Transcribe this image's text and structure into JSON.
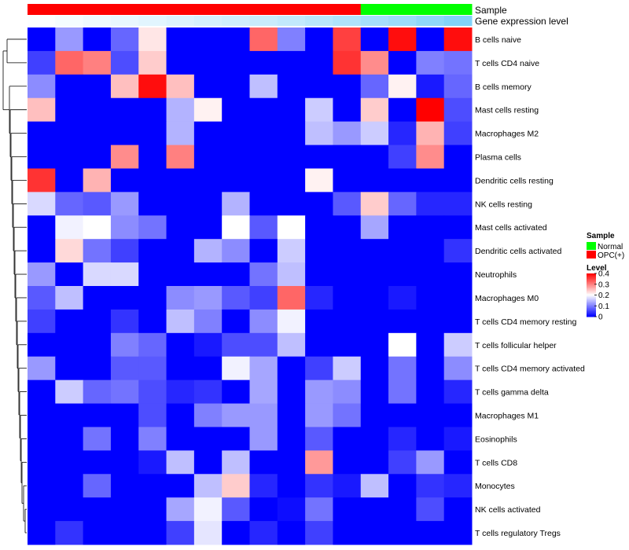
{
  "chart_data": {
    "type": "heatmap",
    "title": "",
    "annotation_tracks": [
      {
        "name": "Sample",
        "values": [
          "OPC(+)",
          "OPC(+)",
          "OPC(+)",
          "OPC(+)",
          "OPC(+)",
          "OPC(+)",
          "OPC(+)",
          "OPC(+)",
          "OPC(+)",
          "OPC(+)",
          "OPC(+)",
          "OPC(+)",
          "Normal",
          "Normal",
          "Normal",
          "Normal"
        ]
      },
      {
        "name": "Gene expression level",
        "values": [
          0.02,
          0.06,
          0.1,
          0.14,
          0.18,
          0.22,
          0.26,
          0.3,
          0.34,
          0.38,
          0.44,
          0.5,
          0.56,
          0.62,
          0.7,
          0.78
        ]
      }
    ],
    "rows": [
      "B cells naive",
      "T cells CD4 naive",
      "B cells memory",
      "Mast cells resting",
      "Macrophages M2",
      "Plasma cells",
      "Dendritic cells resting",
      "NK cells resting",
      "Mast cells activated",
      "Dendritic cells activated",
      "Neutrophils",
      "Macrophages M0",
      "T cells CD4 memory resting",
      "T cells follicular helper",
      "T cells CD4 memory activated",
      "T cells gamma delta",
      "Macrophages M1",
      "Eosinophils",
      "T cells CD8",
      "Monocytes",
      "NK cells activated",
      "T cells regulatory  Tregs"
    ],
    "values": [
      [
        0,
        0.12,
        0,
        0.08,
        0.22,
        0,
        0,
        0,
        0.32,
        0.1,
        0,
        0.35,
        0,
        0.39,
        0,
        0.39
      ],
      [
        0.05,
        0.32,
        0.3,
        0.06,
        0.24,
        0,
        0,
        0,
        0,
        0,
        0,
        0.36,
        0.29,
        0,
        0.1,
        0.09
      ],
      [
        0.11,
        0,
        0,
        0.25,
        0.39,
        0.25,
        0,
        0,
        0.15,
        0,
        0,
        0,
        0.08,
        0.21,
        0.02,
        0.08
      ],
      [
        0.25,
        0,
        0,
        0,
        0,
        0.14,
        0.21,
        0,
        0,
        0,
        0.16,
        0,
        0.24,
        0,
        0.4,
        0.06
      ],
      [
        0,
        0,
        0,
        0,
        0,
        0.14,
        0,
        0,
        0,
        0,
        0.15,
        0.12,
        0.16,
        0.03,
        0.26,
        0.05
      ],
      [
        0,
        0,
        0,
        0.29,
        0,
        0.3,
        0,
        0,
        0,
        0,
        0,
        0,
        0,
        0.05,
        0.29,
        0
      ],
      [
        0.36,
        0,
        0.26,
        0,
        0,
        0,
        0,
        0,
        0,
        0,
        0.21,
        0,
        0,
        0,
        0,
        0
      ],
      [
        0.17,
        0.08,
        0.07,
        0.12,
        0,
        0,
        0,
        0.14,
        0,
        0,
        0,
        0.07,
        0.24,
        0.08,
        0.03,
        0.03
      ],
      [
        0,
        0.19,
        0.2,
        0.11,
        0.09,
        0,
        0,
        0.2,
        0.07,
        0.2,
        0,
        0,
        0.13,
        0,
        0,
        0
      ],
      [
        0,
        0.23,
        0.09,
        0.05,
        0,
        0,
        0.14,
        0.11,
        0,
        0.16,
        0,
        0,
        0,
        0,
        0,
        0.04
      ],
      [
        0.12,
        0,
        0.17,
        0.17,
        0,
        0,
        0,
        0,
        0.09,
        0.15,
        0,
        0,
        0,
        0,
        0,
        0
      ],
      [
        0.07,
        0.15,
        0,
        0,
        0,
        0.11,
        0.12,
        0.07,
        0.05,
        0.32,
        0.03,
        0,
        0,
        0.02,
        0,
        0
      ],
      [
        0.05,
        0,
        0,
        0.04,
        0,
        0.15,
        0.1,
        0,
        0.11,
        0.19,
        0,
        0,
        0,
        0,
        0,
        0
      ],
      [
        0,
        0,
        0,
        0.1,
        0.08,
        0,
        0.02,
        0.06,
        0.06,
        0.15,
        0,
        0,
        0,
        0.2,
        0,
        0.16
      ],
      [
        0.12,
        0,
        0,
        0.07,
        0.07,
        0,
        0,
        0.19,
        0.13,
        0,
        0.05,
        0.16,
        0,
        0.09,
        0,
        0.11
      ],
      [
        0,
        0.16,
        0.08,
        0.09,
        0.06,
        0.03,
        0.04,
        0,
        0.13,
        0,
        0.12,
        0.11,
        0,
        0.09,
        0,
        0.03
      ],
      [
        0,
        0,
        0,
        0,
        0.06,
        0,
        0.1,
        0.12,
        0.12,
        0,
        0.12,
        0.09,
        0,
        0,
        0,
        0
      ],
      [
        0,
        0,
        0.09,
        0,
        0.1,
        0,
        0,
        0,
        0.12,
        0,
        0.07,
        0,
        0,
        0.03,
        0,
        0.02
      ],
      [
        0,
        0,
        0,
        0,
        0.02,
        0.15,
        0,
        0.15,
        0,
        0,
        0.28,
        0,
        0,
        0.05,
        0.12,
        0
      ],
      [
        0,
        0,
        0.08,
        0,
        0,
        0,
        0.15,
        0.24,
        0.03,
        0,
        0.04,
        0.02,
        0.15,
        0,
        0.04,
        0.03
      ],
      [
        0,
        0,
        0,
        0,
        0,
        0.13,
        0.19,
        0.07,
        0,
        0.01,
        0.09,
        0,
        0,
        0,
        0.06,
        0
      ],
      [
        0,
        0.04,
        0,
        0,
        0,
        0.05,
        0.18,
        0,
        0.03,
        0,
        0.05,
        0,
        0,
        0,
        0,
        0
      ]
    ],
    "legend": {
      "sample_title": "Sample",
      "sample_entries": [
        {
          "label": "Normal",
          "color": "#00ff00"
        },
        {
          "label": "OPC(+)",
          "color": "#ff0000"
        }
      ],
      "level_title": "Level",
      "level_ticks": [
        {
          "value": 0.4,
          "label": "0.4"
        },
        {
          "value": 0.3,
          "label": "0.3"
        },
        {
          "value": 0.2,
          "label": "0.2"
        },
        {
          "value": 0.1,
          "label": "0.1"
        },
        {
          "value": 0,
          "label": "0"
        }
      ],
      "position": "right"
    },
    "scale": {
      "min": 0,
      "max": 0.4,
      "low_color": "#0000ff",
      "mid_color": "#ffffff",
      "high_color": "#ff0000"
    },
    "expression_scale": {
      "low_color": "#ffffff",
      "high_color": "#5fc6f7"
    },
    "colors": {
      "normal": "#00ff00",
      "opc": "#ff0000"
    },
    "dendrogram": "row",
    "xlabel": "",
    "ylabel": ""
  }
}
